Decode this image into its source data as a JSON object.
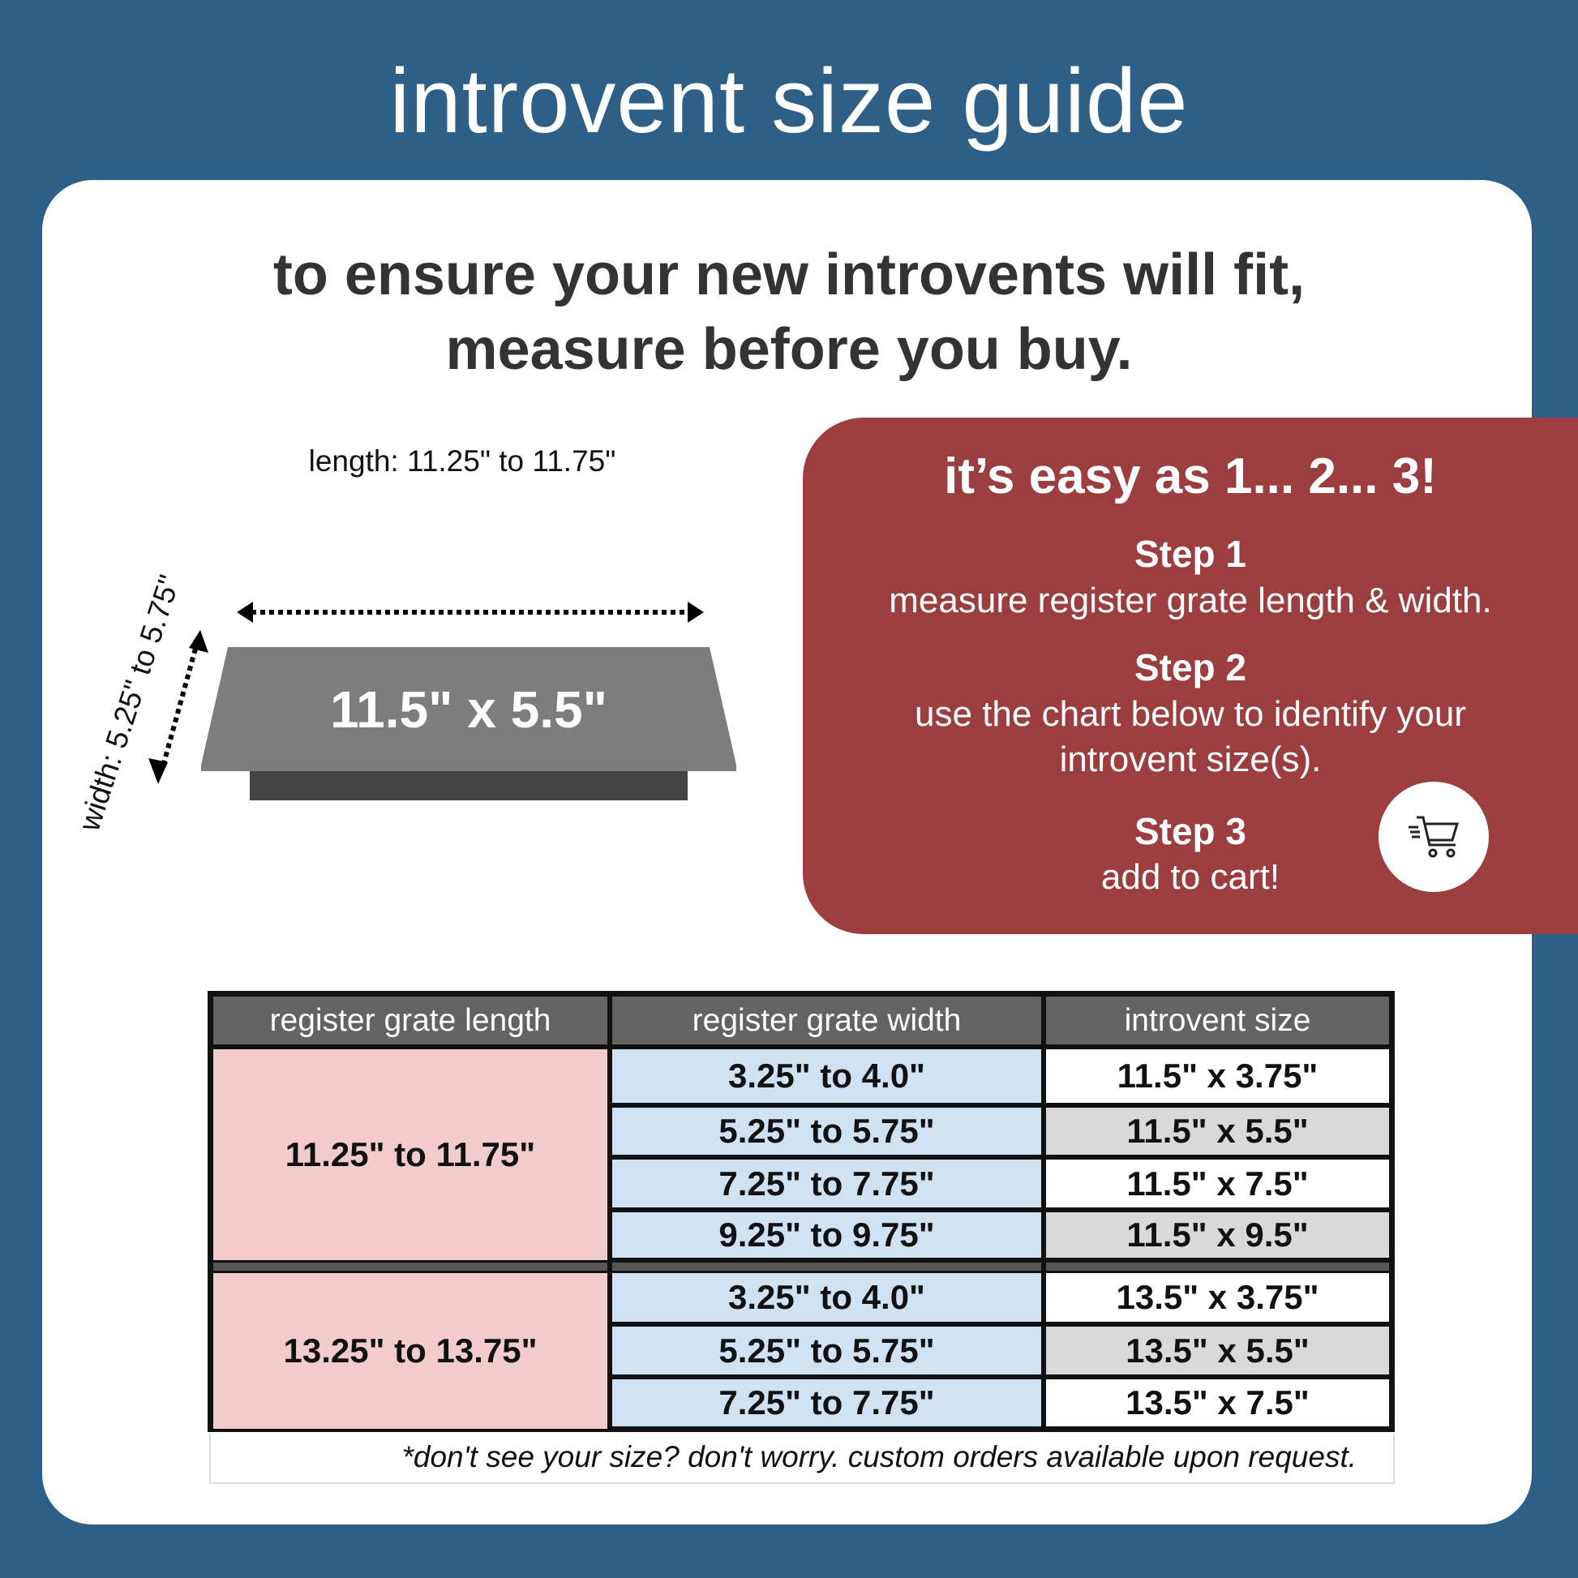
{
  "title": "introvent size guide",
  "headline": {
    "line1": "to ensure your new introvents will fit,",
    "line2": "measure before you buy."
  },
  "steps_panel": {
    "title": "it’s easy as 1... 2... 3!",
    "steps": [
      {
        "label": "Step 1",
        "text": [
          "measure register grate length & width."
        ]
      },
      {
        "label": "Step 2",
        "text": [
          "use the chart below to identify your",
          "introvent size(s)."
        ]
      },
      {
        "label": "Step 3",
        "text": [
          "add to cart!"
        ]
      }
    ],
    "cart_icon": "shopping-cart-icon"
  },
  "diagram": {
    "length_label": "length: 11.25\" to 11.75\"",
    "width_label": "width: 5.25\" to 5.75\"",
    "product_label": "11.5\" x 5.5\""
  },
  "table": {
    "headers": [
      "register grate length",
      "register grate width",
      "introvent size"
    ],
    "groups": [
      {
        "length": "11.25\" to 11.75\"",
        "rows": [
          [
            "3.25\" to 4.0\"",
            "11.5\" x 3.75\""
          ],
          [
            "5.25\" to 5.75\"",
            "11.5\" x 5.5\""
          ],
          [
            "7.25\" to 7.75\"",
            "11.5\" x 7.5\""
          ],
          [
            "9.25\" to 9.75\"",
            "11.5\" x 9.5\""
          ]
        ]
      },
      {
        "length": "13.25\" to 13.75\"",
        "rows": [
          [
            "3.25\" to 4.0\"",
            "13.5\" x 3.75\""
          ],
          [
            "5.25\" to 5.75\"",
            "13.5\" x 5.5\""
          ],
          [
            "7.25\" to 7.75\"",
            "13.5\" x 7.5\""
          ]
        ]
      }
    ],
    "footnote": "*don't see your size? don't worry. custom orders available upon request."
  },
  "colors": {
    "background": "#2e5f87",
    "panel": "#9c3d3f",
    "length_cell": "#f2cccc",
    "width_cell": "#cfe2f3",
    "size_alt": "#d9d9d9",
    "header": "#636363"
  }
}
